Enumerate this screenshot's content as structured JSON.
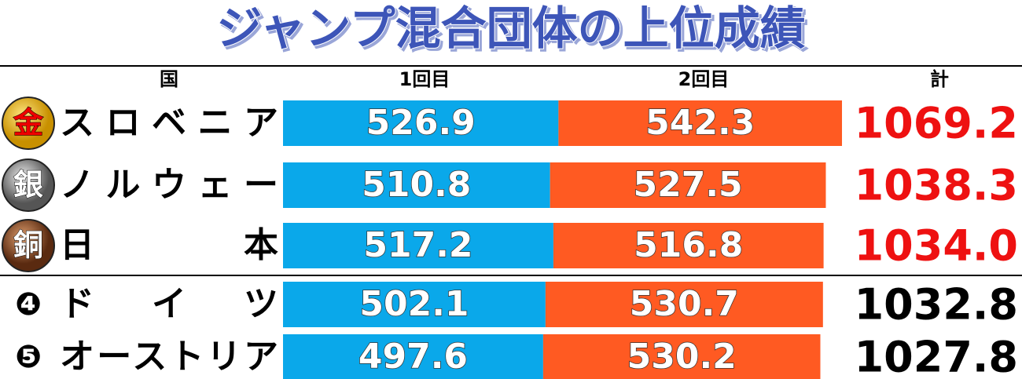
{
  "chart_data": {
    "type": "stacked-bar",
    "title": "ジャンプ混合団体の上位成績",
    "category_header": "国",
    "total_header": "計",
    "ranks": [
      "金",
      "銀",
      "銅",
      "❹",
      "❺"
    ],
    "categories": [
      "スロベニア",
      "ノルウェー",
      "日　　　本",
      "ド　イ　ツ",
      "オーストリア"
    ],
    "series": [
      {
        "name": "1回目",
        "color": "#0aa8ea",
        "values": [
          526.9,
          510.8,
          517.2,
          502.1,
          497.6
        ]
      },
      {
        "name": "2回目",
        "color": "#ff5a22",
        "values": [
          542.3,
          527.5,
          516.8,
          530.7,
          530.2
        ]
      }
    ],
    "totals": {
      "values": [
        1069.2,
        1038.3,
        1034.0,
        1032.8,
        1027.8
      ],
      "value_labels": [
        "1069.2",
        "1038.3",
        "1034.0",
        "1032.8",
        "1027.8"
      ],
      "colors": [
        "#ee1111",
        "#ee1111",
        "#ee1111",
        "#000000",
        "#000000"
      ]
    }
  }
}
